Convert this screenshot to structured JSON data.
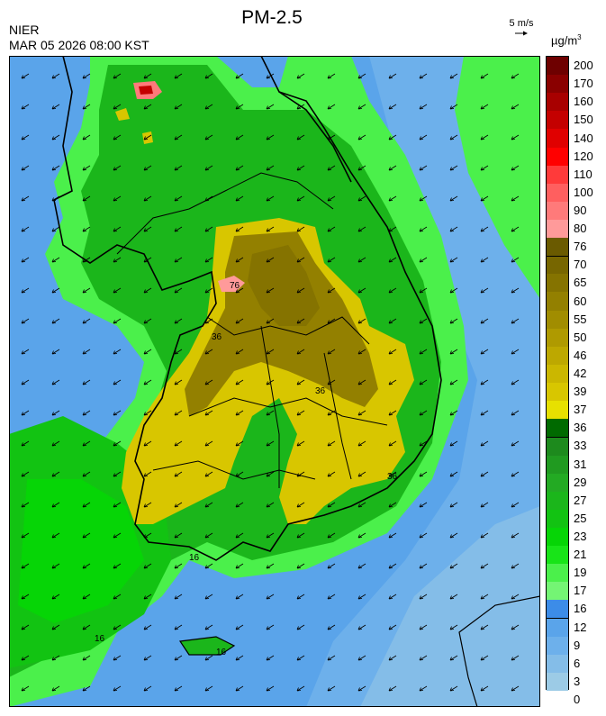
{
  "header": {
    "title": "PM-2.5",
    "agency": "NIER",
    "valid_time": "MAR 05 2026 08:00 KST",
    "wind_reference": "5 m/s",
    "unit_base": "µg/m",
    "unit_exp": "3"
  },
  "legend": {
    "ticks": [
      "200",
      "170",
      "160",
      "150",
      "140",
      "120",
      "110",
      "100",
      "90",
      "80",
      "76",
      "70",
      "65",
      "60",
      "55",
      "50",
      "46",
      "42",
      "39",
      "37",
      "36",
      "33",
      "31",
      "29",
      "27",
      "25",
      "23",
      "21",
      "19",
      "17",
      "16",
      "12",
      "9",
      "6",
      "3",
      "0"
    ],
    "colors": [
      "#6e0000",
      "#8a0000",
      "#a80000",
      "#c40000",
      "#e00000",
      "#ff0000",
      "#ff3a3a",
      "#ff5f5f",
      "#ff7a7a",
      "#ff9a9a",
      "#6a5a00",
      "#776600",
      "#857300",
      "#938000",
      "#a18d00",
      "#af9a00",
      "#bda800",
      "#cbb700",
      "#d8c600",
      "#e7e000",
      "#006a00",
      "#1d8a1d",
      "#209a20",
      "#23aa23",
      "#1bb61b",
      "#12c312",
      "#06d506",
      "#18e418",
      "#4bf04b",
      "#74f574",
      "#3c8ce8",
      "#5aa4ea",
      "#6db0eb",
      "#84bde8",
      "#9ccbe6"
    ],
    "dividers_after": [
      10,
      20,
      30
    ]
  },
  "map": {
    "contour_labels": [
      "16",
      "16",
      "16",
      "36",
      "36",
      "36",
      "76"
    ],
    "categories": {
      "ocean_low": "#5aa4ea",
      "clean_sea": "#84bde8",
      "moderate": "#1bb61b",
      "good": "#4bf04b",
      "bad": "#d8c600",
      "bad_high": "#938000",
      "very_bad": "#ff9a9a",
      "extreme": "#c40000"
    }
  }
}
